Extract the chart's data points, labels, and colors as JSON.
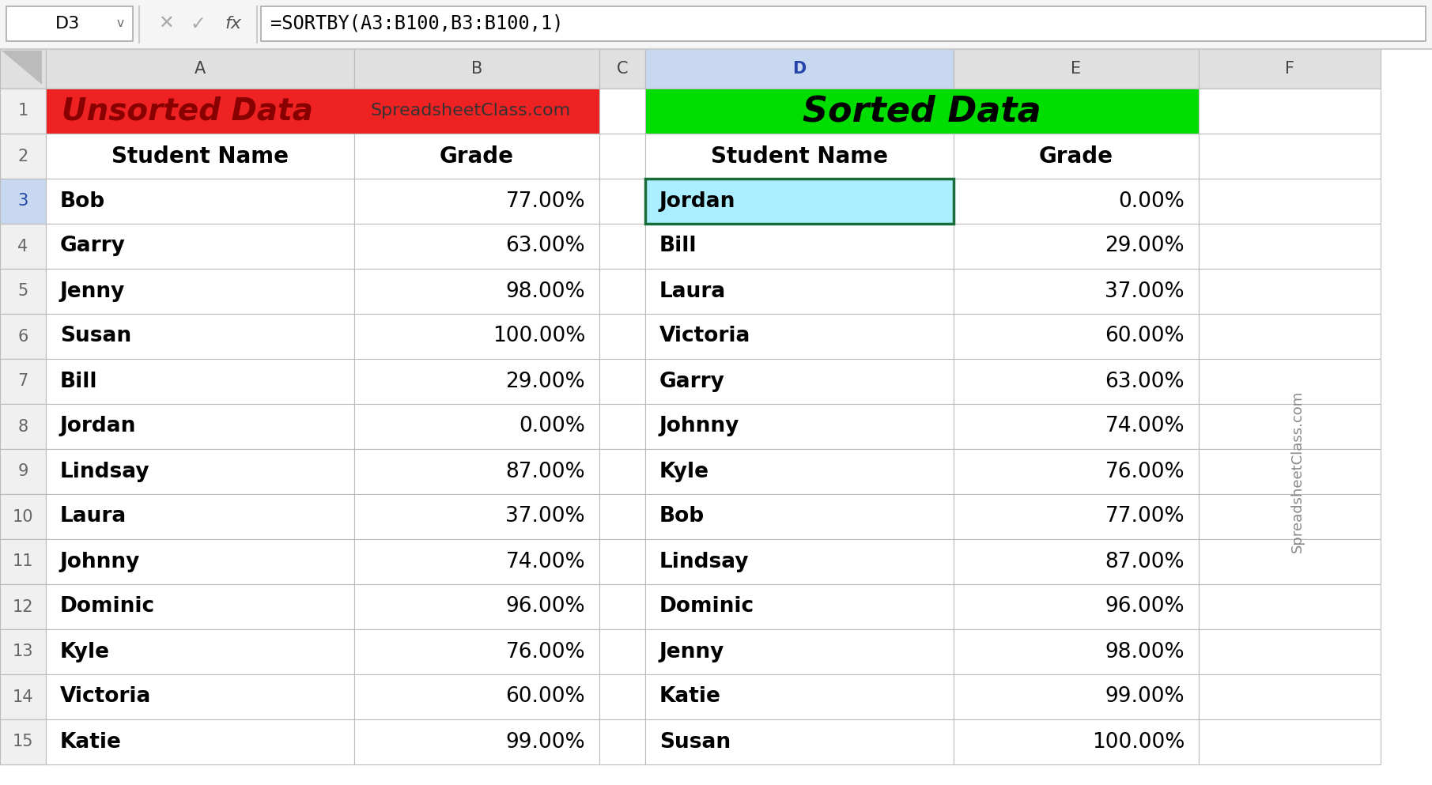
{
  "formula_bar_cell": "D3",
  "formula_bar_formula": "=SORTBY(A3:B100,B3:B100,1)",
  "unsorted_title": "Unsorted Data",
  "unsorted_subtitle": "SpreadsheetClass.com",
  "sorted_title": "Sorted Data",
  "unsorted_data": [
    [
      "Bob",
      "77.00%"
    ],
    [
      "Garry",
      "63.00%"
    ],
    [
      "Jenny",
      "98.00%"
    ],
    [
      "Susan",
      "100.00%"
    ],
    [
      "Bill",
      "29.00%"
    ],
    [
      "Jordan",
      "0.00%"
    ],
    [
      "Lindsay",
      "87.00%"
    ],
    [
      "Laura",
      "37.00%"
    ],
    [
      "Johnny",
      "74.00%"
    ],
    [
      "Dominic",
      "96.00%"
    ],
    [
      "Kyle",
      "76.00%"
    ],
    [
      "Victoria",
      "60.00%"
    ],
    [
      "Katie",
      "99.00%"
    ]
  ],
  "sorted_data": [
    [
      "Jordan",
      "0.00%"
    ],
    [
      "Bill",
      "29.00%"
    ],
    [
      "Laura",
      "37.00%"
    ],
    [
      "Victoria",
      "60.00%"
    ],
    [
      "Garry",
      "63.00%"
    ],
    [
      "Johnny",
      "74.00%"
    ],
    [
      "Kyle",
      "76.00%"
    ],
    [
      "Bob",
      "77.00%"
    ],
    [
      "Lindsay",
      "87.00%"
    ],
    [
      "Dominic",
      "96.00%"
    ],
    [
      "Jenny",
      "98.00%"
    ],
    [
      "Katie",
      "99.00%"
    ],
    [
      "Susan",
      "100.00%"
    ]
  ],
  "bg_color": "#FFFFFF",
  "col_header_bg": "#E0E0E0",
  "col_header_selected_bg": "#C8D8F0",
  "row_header_bg": "#F0F0F0",
  "unsorted_header_bg": "#EE2222",
  "sorted_header_bg": "#00DD00",
  "unsorted_title_color": "#880000",
  "cell_border_color": "#BBBBBB",
  "selected_cell_bg": "#AAEEFF",
  "selected_cell_border": "#1A6B3A",
  "watermark_color": "#888888",
  "top_bar_bg": "#F5F5F5",
  "formula_box_border": "#AAAAAA",
  "row_num_selected_color": "#2244AA"
}
